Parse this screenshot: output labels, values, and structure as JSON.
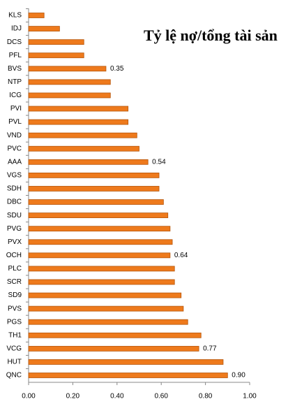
{
  "chart_data": {
    "type": "bar",
    "orientation": "horizontal",
    "title": "Tỷ lệ nợ/tổng tài sản",
    "categories": [
      "KLS",
      "IDJ",
      "DCS",
      "PFL",
      "BVS",
      "NTP",
      "ICG",
      "PVI",
      "PVL",
      "VND",
      "PVC",
      "AAA",
      "VGS",
      "SDH",
      "DBC",
      "SDU",
      "PVG",
      "PVX",
      "OCH",
      "PLC",
      "SCR",
      "SD9",
      "PVS",
      "PGS",
      "TH1",
      "VCG",
      "HUT",
      "QNC"
    ],
    "values": [
      0.07,
      0.14,
      0.25,
      0.25,
      0.35,
      0.37,
      0.37,
      0.45,
      0.45,
      0.49,
      0.5,
      0.54,
      0.59,
      0.59,
      0.61,
      0.63,
      0.64,
      0.65,
      0.64,
      0.66,
      0.66,
      0.69,
      0.7,
      0.72,
      0.78,
      0.77,
      0.88,
      0.9
    ],
    "value_labels": [
      null,
      null,
      null,
      null,
      "0.35",
      null,
      null,
      null,
      null,
      null,
      null,
      "0.54",
      null,
      null,
      null,
      null,
      null,
      null,
      "0.64",
      null,
      null,
      null,
      null,
      null,
      null,
      "0.77",
      null,
      "0.90"
    ],
    "color": "#ee7a1c",
    "xlim": [
      0,
      1
    ],
    "xticks": [
      {
        "value": 0,
        "label": "0.00"
      },
      {
        "value": 0.2,
        "label": "0.20"
      },
      {
        "value": 0.4,
        "label": "0.40"
      },
      {
        "value": 0.6,
        "label": "0.60"
      },
      {
        "value": 0.8,
        "label": "0.80"
      },
      {
        "value": 1,
        "label": "1.00"
      }
    ],
    "grid": false
  }
}
